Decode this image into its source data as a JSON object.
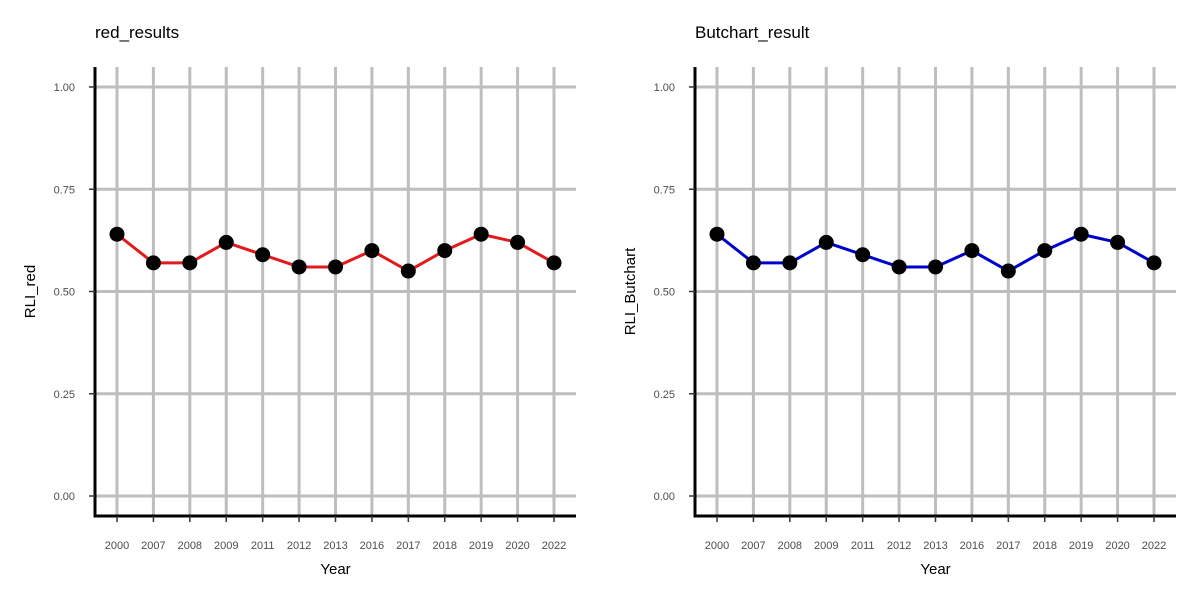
{
  "figure_background": "#ffffff",
  "grid_color": "#bebebe",
  "axis_color": "#000000",
  "point_color": "#000000",
  "chart_data": [
    {
      "type": "line",
      "title": "red_results",
      "xlabel": "Year",
      "ylabel": "RLI_red",
      "categories": [
        "2000",
        "2007",
        "2008",
        "2009",
        "2011",
        "2012",
        "2013",
        "2016",
        "2017",
        "2018",
        "2019",
        "2020",
        "2022"
      ],
      "series": [
        {
          "values": [
            0.64,
            0.57,
            0.57,
            0.62,
            0.59,
            0.56,
            0.56,
            0.6,
            0.55,
            0.6,
            0.64,
            0.62,
            0.57
          ],
          "color": "#e31a1c"
        }
      ],
      "ylim": [
        0,
        1
      ],
      "yticks": [
        0,
        0.25,
        0.5,
        0.75,
        1
      ],
      "ytick_labels": [
        "0.00",
        "0.25",
        "0.50",
        "0.75",
        "1.00"
      ],
      "grid": true,
      "legend": "none"
    },
    {
      "type": "line",
      "title": "Butchart_result",
      "xlabel": "Year",
      "ylabel": "RLI_Butchart",
      "categories": [
        "2000",
        "2007",
        "2008",
        "2009",
        "2011",
        "2012",
        "2013",
        "2016",
        "2017",
        "2018",
        "2019",
        "2020",
        "2022"
      ],
      "series": [
        {
          "values": [
            0.64,
            0.57,
            0.57,
            0.62,
            0.59,
            0.56,
            0.56,
            0.6,
            0.55,
            0.6,
            0.64,
            0.62,
            0.57
          ],
          "color": "#0000cd"
        }
      ],
      "ylim": [
        0,
        1
      ],
      "yticks": [
        0,
        0.25,
        0.5,
        0.75,
        1
      ],
      "ytick_labels": [
        "0.00",
        "0.25",
        "0.50",
        "0.75",
        "1.00"
      ],
      "grid": true,
      "legend": "none"
    }
  ]
}
